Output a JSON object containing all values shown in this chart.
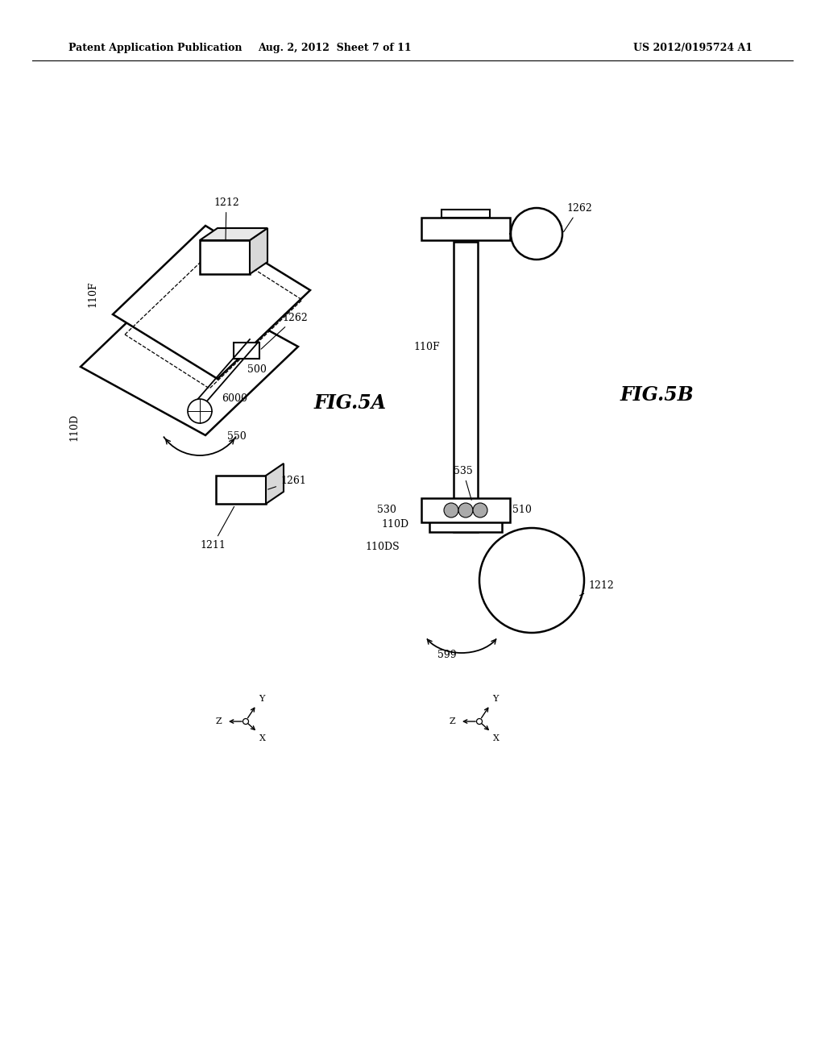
{
  "bg_color": "#ffffff",
  "header_left": "Patent Application Publication",
  "header_center": "Aug. 2, 2012  Sheet 7 of 11",
  "header_right": "US 2012/0195724 A1",
  "fig5a_label": "FIG.5A",
  "fig5b_label": "FIG.5B"
}
